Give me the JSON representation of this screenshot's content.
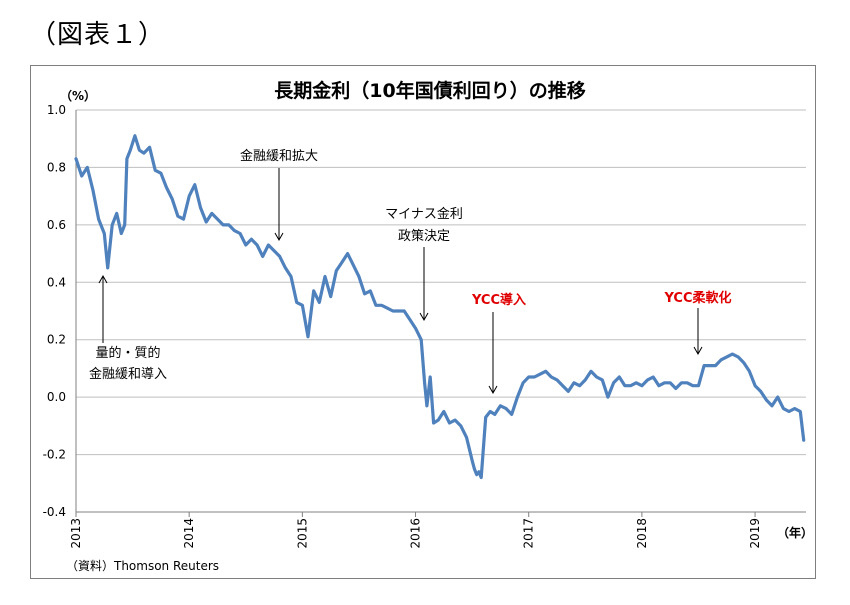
{
  "figure_label": "（図表１）",
  "chart_data": {
    "type": "line",
    "title": "長期金利（10年国債利回り）の推移",
    "y_unit": "（%）",
    "x_unit": "（年）",
    "ylim": [
      -0.4,
      1.0
    ],
    "y_ticks": [
      "1.0",
      "0.8",
      "0.6",
      "0.4",
      "0.2",
      "0.0",
      "-0.2",
      "-0.4"
    ],
    "y_tick_values": [
      1.0,
      0.8,
      0.6,
      0.4,
      0.2,
      0.0,
      -0.2,
      -0.4
    ],
    "xlim": [
      2013.0,
      2019.45
    ],
    "x_ticks": [
      "2013",
      "2014",
      "2015",
      "2016",
      "2017",
      "2018",
      "2019"
    ],
    "x_tick_values": [
      2013,
      2014,
      2015,
      2016,
      2017,
      2018,
      2019
    ],
    "grid": "horizontal",
    "series_color": "#4f81bd",
    "series": [
      {
        "x": [
          2013.0,
          2013.05,
          2013.1,
          2013.15,
          2013.2,
          2013.25,
          2013.28,
          2013.32,
          2013.36,
          2013.4,
          2013.43,
          2013.45,
          2013.48,
          2013.52,
          2013.56,
          2013.6,
          2013.65,
          2013.7,
          2013.75,
          2013.8,
          2013.85,
          2013.9,
          2013.95,
          2014.0,
          2014.05,
          2014.1,
          2014.15,
          2014.2,
          2014.25,
          2014.3,
          2014.35,
          2014.4,
          2014.45,
          2014.5,
          2014.55,
          2014.6,
          2014.65,
          2014.7,
          2014.75,
          2014.8,
          2014.85,
          2014.9,
          2014.95,
          2015.0,
          2015.05,
          2015.1,
          2015.15,
          2015.2,
          2015.25,
          2015.3,
          2015.35,
          2015.4,
          2015.45,
          2015.5,
          2015.55,
          2015.6,
          2015.65,
          2015.7,
          2015.75,
          2015.8,
          2015.85,
          2015.9,
          2015.95,
          2016.0,
          2016.05,
          2016.08,
          2016.1,
          2016.13,
          2016.16,
          2016.2,
          2016.25,
          2016.3,
          2016.35,
          2016.4,
          2016.45,
          2016.5,
          2016.52,
          2016.54,
          2016.56,
          2016.58,
          2016.62,
          2016.66,
          2016.7,
          2016.75,
          2016.8,
          2016.85,
          2016.9,
          2016.95,
          2017.0,
          2017.05,
          2017.1,
          2017.15,
          2017.2,
          2017.25,
          2017.3,
          2017.35,
          2017.4,
          2017.45,
          2017.5,
          2017.55,
          2017.6,
          2017.65,
          2017.7,
          2017.75,
          2017.8,
          2017.85,
          2017.9,
          2017.95,
          2018.0,
          2018.05,
          2018.1,
          2018.15,
          2018.2,
          2018.25,
          2018.3,
          2018.35,
          2018.4,
          2018.45,
          2018.5,
          2018.55,
          2018.6,
          2018.65,
          2018.7,
          2018.75,
          2018.8,
          2018.85,
          2018.9,
          2018.95,
          2019.0,
          2019.05,
          2019.1,
          2019.15,
          2019.2,
          2019.25,
          2019.3,
          2019.35,
          2019.4,
          2019.43
        ],
        "values": [
          0.83,
          0.77,
          0.8,
          0.72,
          0.62,
          0.57,
          0.45,
          0.6,
          0.64,
          0.57,
          0.6,
          0.83,
          0.86,
          0.91,
          0.86,
          0.85,
          0.87,
          0.79,
          0.78,
          0.73,
          0.69,
          0.63,
          0.62,
          0.7,
          0.74,
          0.66,
          0.61,
          0.64,
          0.62,
          0.6,
          0.6,
          0.58,
          0.57,
          0.53,
          0.55,
          0.53,
          0.49,
          0.53,
          0.51,
          0.49,
          0.45,
          0.42,
          0.33,
          0.32,
          0.21,
          0.37,
          0.33,
          0.42,
          0.35,
          0.44,
          0.47,
          0.5,
          0.46,
          0.42,
          0.36,
          0.37,
          0.32,
          0.32,
          0.31,
          0.3,
          0.3,
          0.3,
          0.27,
          0.24,
          0.2,
          0.05,
          -0.03,
          0.07,
          -0.09,
          -0.08,
          -0.05,
          -0.09,
          -0.08,
          -0.1,
          -0.14,
          -0.22,
          -0.25,
          -0.27,
          -0.26,
          -0.28,
          -0.07,
          -0.05,
          -0.06,
          -0.03,
          -0.04,
          -0.06,
          0.0,
          0.05,
          0.07,
          0.07,
          0.08,
          0.09,
          0.07,
          0.06,
          0.04,
          0.02,
          0.05,
          0.04,
          0.06,
          0.09,
          0.07,
          0.06,
          0.0,
          0.05,
          0.07,
          0.04,
          0.04,
          0.05,
          0.04,
          0.06,
          0.07,
          0.04,
          0.05,
          0.05,
          0.03,
          0.05,
          0.05,
          0.04,
          0.04,
          0.11,
          0.11,
          0.11,
          0.13,
          0.14,
          0.15,
          0.14,
          0.12,
          0.09,
          0.04,
          0.02,
          -0.01,
          -0.03,
          0.0,
          -0.04,
          -0.05,
          -0.04,
          -0.05,
          -0.15
        ]
      }
    ],
    "annotations": [
      {
        "text": "量的・質的",
        "color": "black"
      },
      {
        "text": "金融緩和導入",
        "color": "black"
      },
      {
        "text": "金融緩和拡大",
        "color": "black"
      },
      {
        "text": "マイナス金利",
        "color": "black"
      },
      {
        "text": "政策決定",
        "color": "black"
      },
      {
        "text": "YCC導入",
        "color": "red"
      },
      {
        "text": "YCC柔軟化",
        "color": "red"
      }
    ],
    "source": "（資料）Thomson Reuters"
  }
}
